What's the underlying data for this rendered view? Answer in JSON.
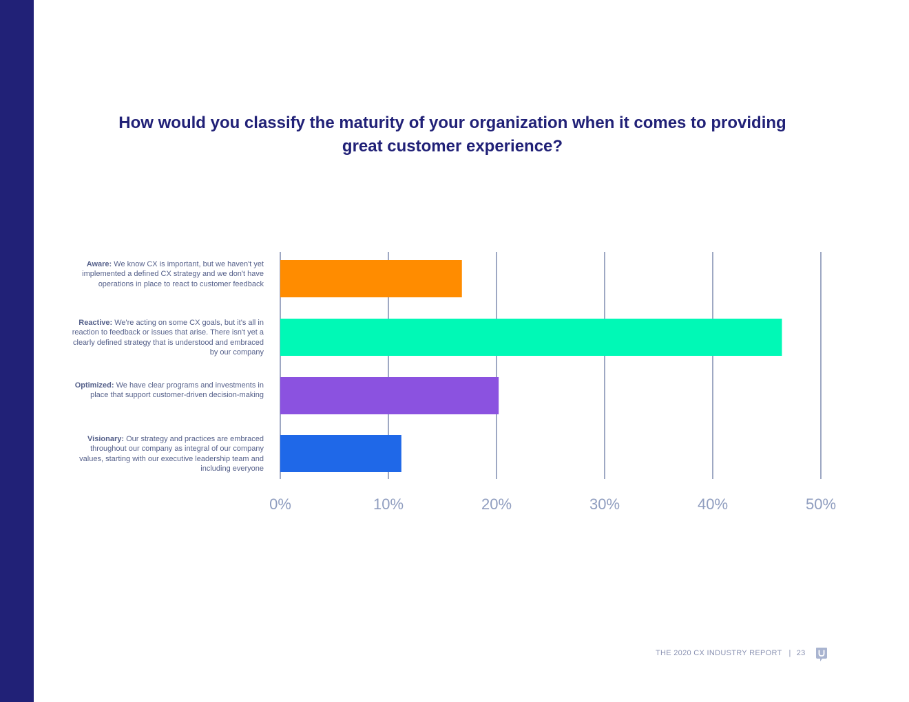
{
  "title": "How would you classify the maturity of your organization when it comes to providing great customer experience?",
  "chart_data": {
    "type": "bar",
    "orientation": "horizontal",
    "title": "How would you classify the maturity of your organization when it comes to providing great customer experience?",
    "categories": [
      {
        "term": "Aware:",
        "description": "We know CX is important, but we haven't yet implemented a defined CX strategy and we don't have operations in place to react to customer feedback"
      },
      {
        "term": "Reactive:",
        "description": "We're acting on some CX goals, but it's all in reaction to feedback or issues that arise. There isn't yet a clearly defined strategy that is understood and embraced by our company"
      },
      {
        "term": "Optimized:",
        "description": "We have clear programs and investments in place that support customer-driven decision-making"
      },
      {
        "term": "Visionary:",
        "description": "Our strategy and practices are embraced throughout our company as integral of our company values, starting with our executive leadership team and including everyone"
      }
    ],
    "values": [
      16.8,
      46.4,
      20.2,
      11.2
    ],
    "colors": [
      "#ff8c00",
      "#00f9b6",
      "#8b52e0",
      "#1f68e8"
    ],
    "xlim": [
      0,
      50
    ],
    "xticks": [
      "0%",
      "10%",
      "20%",
      "30%",
      "40%",
      "50%"
    ],
    "xtick_values": [
      0,
      10,
      20,
      30,
      40,
      50
    ],
    "grid": true,
    "gridline_color": "#8593b4",
    "tick_label_color": "#8f9dbf"
  },
  "footer": {
    "report": "THE 2020 CX INDUSTRY REPORT",
    "separator": "|",
    "page": "23"
  },
  "colors": {
    "sidebar": "#212177",
    "title": "#212177"
  }
}
